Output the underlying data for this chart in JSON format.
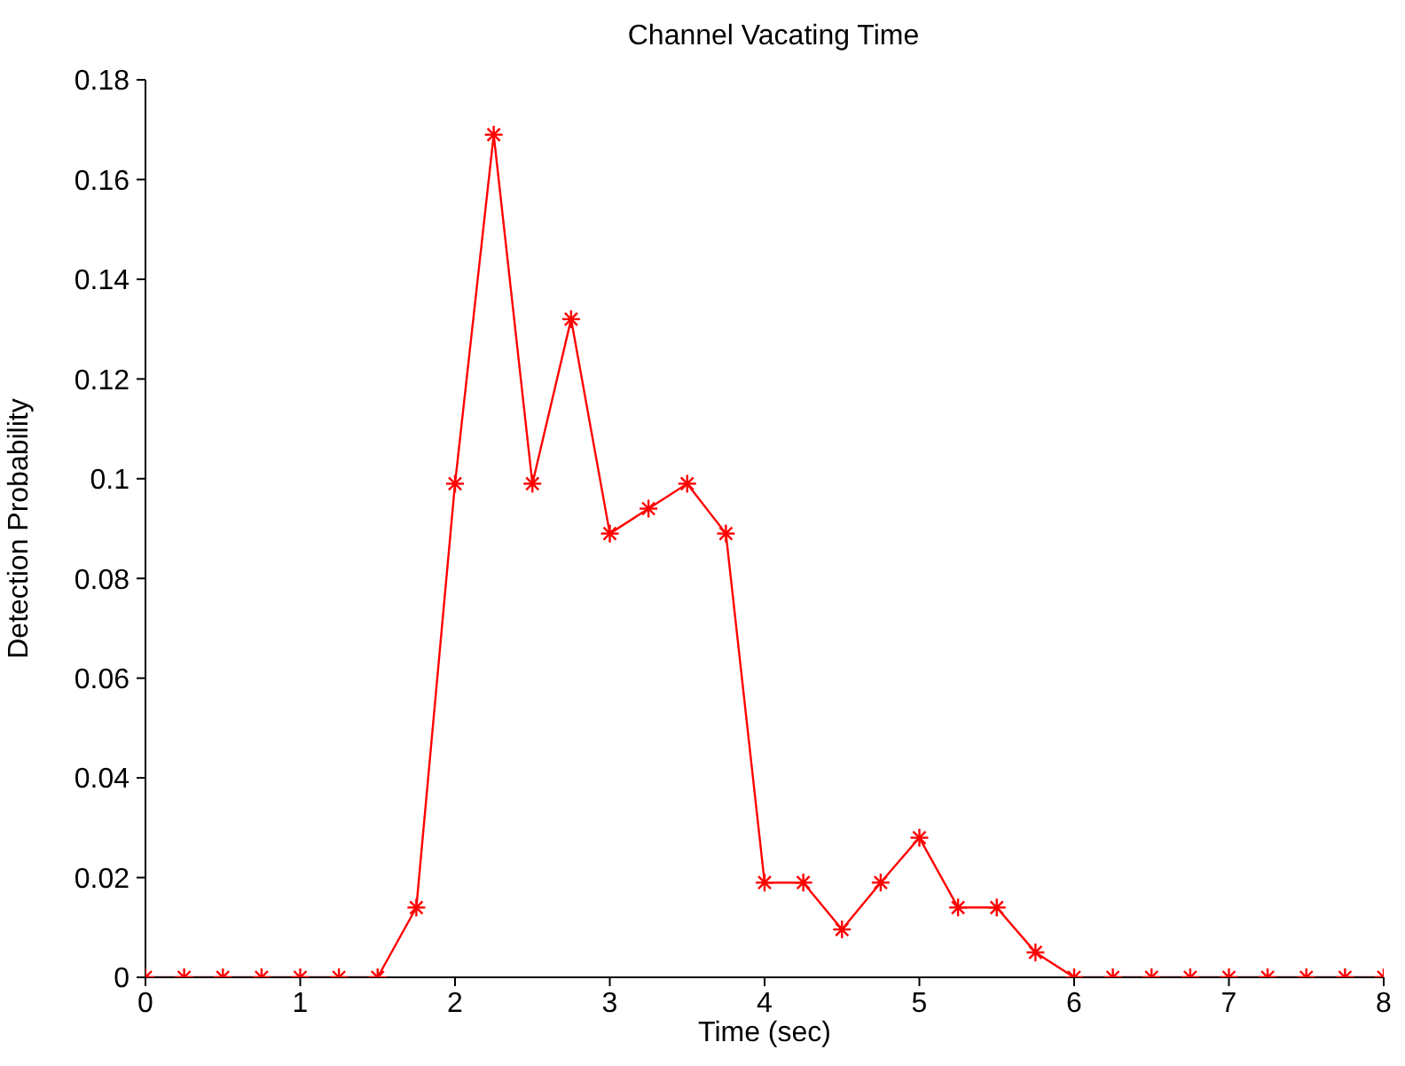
{
  "chart_data": {
    "type": "line",
    "title": "Channel Vacating Time",
    "xlabel": "Time (sec)",
    "ylabel": "Detection Probability",
    "x": [
      0,
      0.25,
      0.5,
      0.75,
      1,
      1.25,
      1.5,
      1.75,
      2,
      2.25,
      2.5,
      2.75,
      3,
      3.25,
      3.5,
      3.75,
      4,
      4.25,
      4.5,
      4.75,
      5,
      5.25,
      5.5,
      5.75,
      6,
      6.25,
      6.5,
      6.75,
      7,
      7.25,
      7.5,
      7.75,
      8
    ],
    "series": [
      {
        "color": "#ff0000",
        "values": [
          0,
          0,
          0,
          0,
          0,
          0,
          0,
          0.014,
          0.099,
          0.169,
          0.099,
          0.132,
          0.089,
          0.094,
          0.099,
          0.089,
          0.019,
          0.019,
          0.0096,
          0.019,
          0.028,
          0.014,
          0.014,
          0.005,
          0,
          0,
          0,
          0,
          0,
          0,
          0,
          0,
          0
        ]
      }
    ],
    "xlim": [
      0,
      8
    ],
    "xticks": [
      0,
      1,
      2,
      3,
      4,
      5,
      6,
      7,
      8
    ],
    "ylim": [
      0,
      0.18
    ],
    "yticks": [
      0,
      0.02,
      0.04,
      0.06,
      0.08,
      0.1,
      0.12,
      0.14,
      0.16,
      0.18
    ],
    "grid": false,
    "legend": false,
    "marker": "cross",
    "line_style": "solid"
  }
}
